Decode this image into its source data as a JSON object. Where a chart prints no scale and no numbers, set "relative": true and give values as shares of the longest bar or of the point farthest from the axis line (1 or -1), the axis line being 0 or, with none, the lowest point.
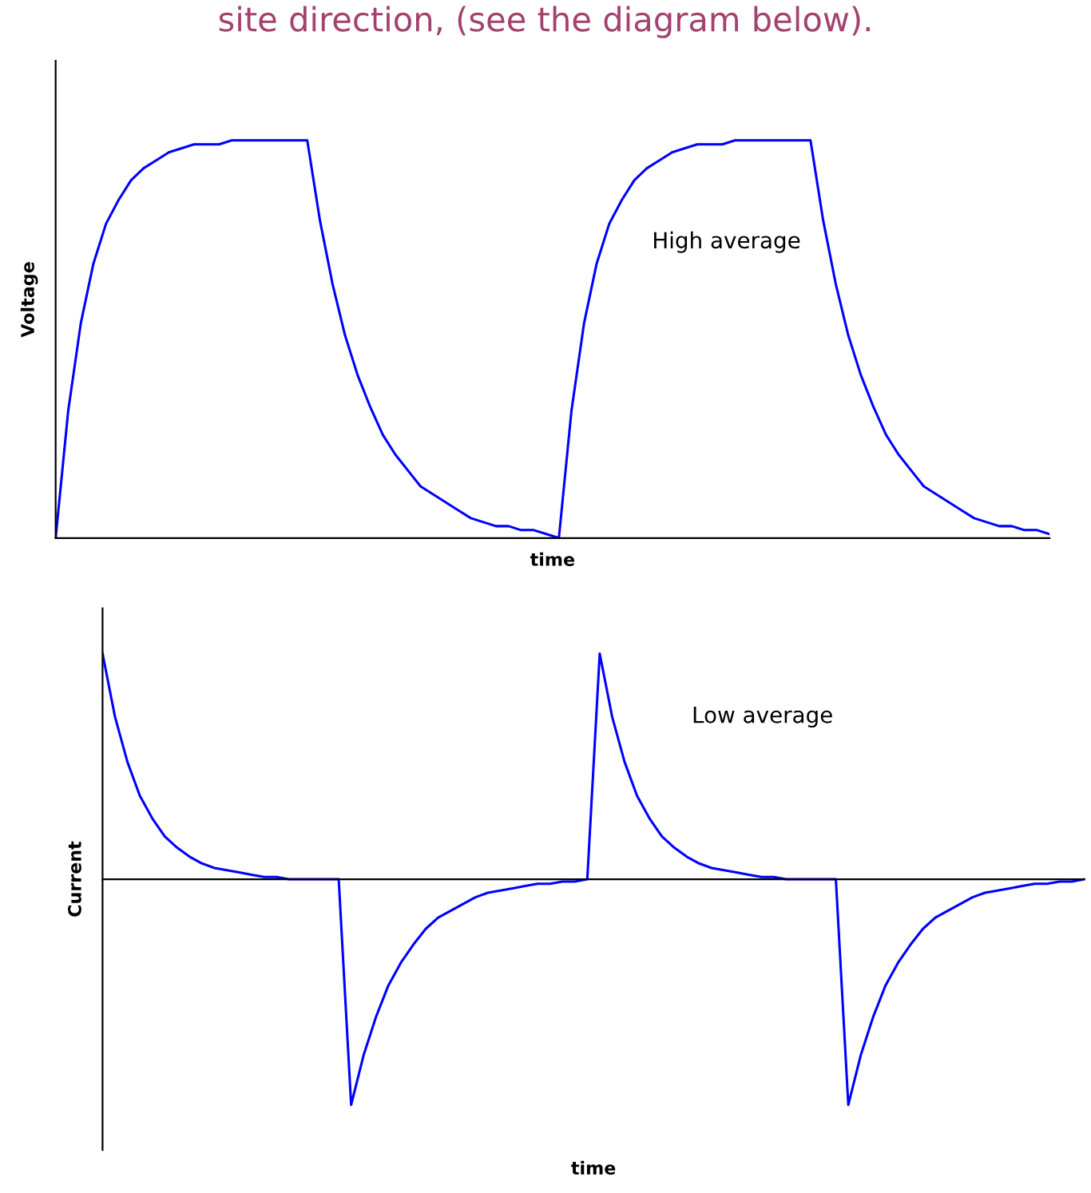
{
  "chart_data": [
    {
      "type": "line",
      "relative": true,
      "title": "site direction, (see the diagram below).",
      "xlabel": "time",
      "ylabel": "Voltage",
      "annotations": [
        "High average"
      ],
      "marker": "none",
      "line_style": "solid",
      "categories": [
        null,
        null,
        null,
        null,
        null,
        null,
        null,
        null,
        null,
        null,
        null,
        null,
        null,
        null,
        null,
        null,
        null,
        null,
        null,
        null,
        null,
        null,
        null,
        null,
        null,
        null,
        null,
        null,
        null,
        null,
        null,
        null,
        null,
        null,
        null,
        null,
        null,
        null,
        null,
        null,
        null,
        null,
        null,
        null,
        null,
        null,
        null,
        null,
        null,
        null,
        null,
        null,
        null,
        null,
        null,
        null,
        null,
        null,
        null,
        null,
        null,
        null,
        null,
        null,
        null,
        null,
        null,
        null,
        null,
        null,
        null,
        null,
        null,
        null,
        null,
        null,
        null,
        null,
        null,
        null
      ],
      "series": [
        {
          "color": "#0000ff",
          "values": [
            0,
            0.32,
            0.54,
            0.69,
            0.79,
            0.85,
            0.9,
            0.93,
            0.95,
            0.97,
            0.98,
            0.99,
            0.99,
            0.99,
            1,
            1,
            1,
            1,
            1,
            1,
            1,
            0.8,
            0.64,
            0.51,
            0.41,
            0.33,
            0.26,
            0.21,
            0.17,
            0.13,
            0.11,
            0.09,
            0.07,
            0.05,
            0.04,
            0.03,
            0.03,
            0.02,
            0.02,
            0.01,
            0,
            0.32,
            0.54,
            0.69,
            0.79,
            0.85,
            0.9,
            0.93,
            0.95,
            0.97,
            0.98,
            0.99,
            0.99,
            0.99,
            1,
            1,
            1,
            1,
            1,
            1,
            1,
            0.8,
            0.64,
            0.51,
            0.41,
            0.33,
            0.26,
            0.21,
            0.17,
            0.13,
            0.11,
            0.09,
            0.07,
            0.05,
            0.04,
            0.03,
            0.03,
            0.02,
            0.02,
            0.01
          ]
        }
      ]
    },
    {
      "type": "line",
      "relative": true,
      "xlabel": "time",
      "ylabel": "Current",
      "annotations": [
        "Low average"
      ],
      "marker": "none",
      "line_style": "solid",
      "categories": [
        null,
        null,
        null,
        null,
        null,
        null,
        null,
        null,
        null,
        null,
        null,
        null,
        null,
        null,
        null,
        null,
        null,
        null,
        null,
        null,
        null,
        null,
        null,
        null,
        null,
        null,
        null,
        null,
        null,
        null,
        null,
        null,
        null,
        null,
        null,
        null,
        null,
        null,
        null,
        null,
        null,
        null,
        null,
        null,
        null,
        null,
        null,
        null,
        null,
        null,
        null,
        null,
        null,
        null,
        null,
        null,
        null,
        null,
        null,
        null,
        null,
        null,
        null,
        null,
        null,
        null,
        null,
        null,
        null,
        null,
        null,
        null,
        null,
        null,
        null,
        null,
        null,
        null,
        null,
        null
      ],
      "series": [
        {
          "color": "#0000ff",
          "values": [
            1,
            0.72,
            0.52,
            0.37,
            0.27,
            0.19,
            0.14,
            0.1,
            0.07,
            0.05,
            0.04,
            0.03,
            0.02,
            0.01,
            0.01,
            0,
            0,
            0,
            0,
            0,
            -1,
            -0.78,
            -0.61,
            -0.47,
            -0.37,
            -0.29,
            -0.22,
            -0.17,
            -0.14,
            -0.11,
            -0.08,
            -0.06,
            -0.05,
            -0.04,
            -0.03,
            -0.02,
            -0.02,
            -0.01,
            -0.01,
            0,
            1,
            0.72,
            0.52,
            0.37,
            0.27,
            0.19,
            0.14,
            0.1,
            0.07,
            0.05,
            0.04,
            0.03,
            0.02,
            0.01,
            0.01,
            0,
            0,
            0,
            0,
            0,
            -1,
            -0.78,
            -0.61,
            -0.47,
            -0.37,
            -0.29,
            -0.22,
            -0.17,
            -0.14,
            -0.11,
            -0.08,
            -0.06,
            -0.05,
            -0.04,
            -0.03,
            -0.02,
            -0.02,
            -0.01,
            -0.01,
            0
          ]
        }
      ]
    }
  ]
}
